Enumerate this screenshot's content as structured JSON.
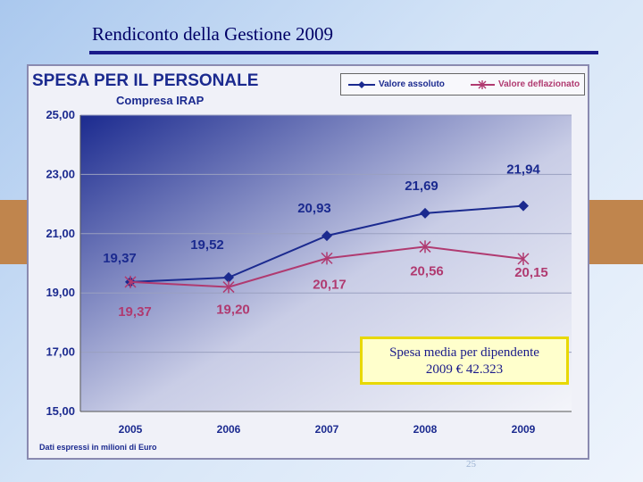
{
  "slide_title": "Rendiconto della Gestione 2009",
  "page_number": "25",
  "callout": {
    "line1": "Spesa media per dipendente",
    "line2": "2009 € 42.323"
  },
  "colors": {
    "series1": "#1b2a8f",
    "series2": "#b03a70",
    "title": "#000066"
  },
  "chart_data": {
    "type": "line",
    "title": "SPESA PER IL PERSONALE",
    "subtitle": "Compresa IRAP",
    "note": "Dati espressi in milioni di Euro",
    "categories": [
      "2005",
      "2006",
      "2007",
      "2008",
      "2009"
    ],
    "ylim": [
      15,
      25
    ],
    "yticks": [
      "25,00",
      "23,00",
      "21,00",
      "19,00",
      "17,00",
      "15,00"
    ],
    "series": [
      {
        "name": "Valore assoluto",
        "marker": "diamond",
        "values": [
          19.37,
          19.52,
          20.93,
          21.69,
          21.94
        ],
        "labels": [
          "19,37",
          "19,52",
          "20,93",
          "21,69",
          "21,94"
        ]
      },
      {
        "name": "Valore deflazionato",
        "marker": "star",
        "values": [
          19.37,
          19.2,
          20.17,
          20.56,
          20.15
        ],
        "labels": [
          "19,37",
          "19,20",
          "20,17",
          "20,56",
          "20,15"
        ]
      }
    ],
    "legend": "top-right"
  }
}
